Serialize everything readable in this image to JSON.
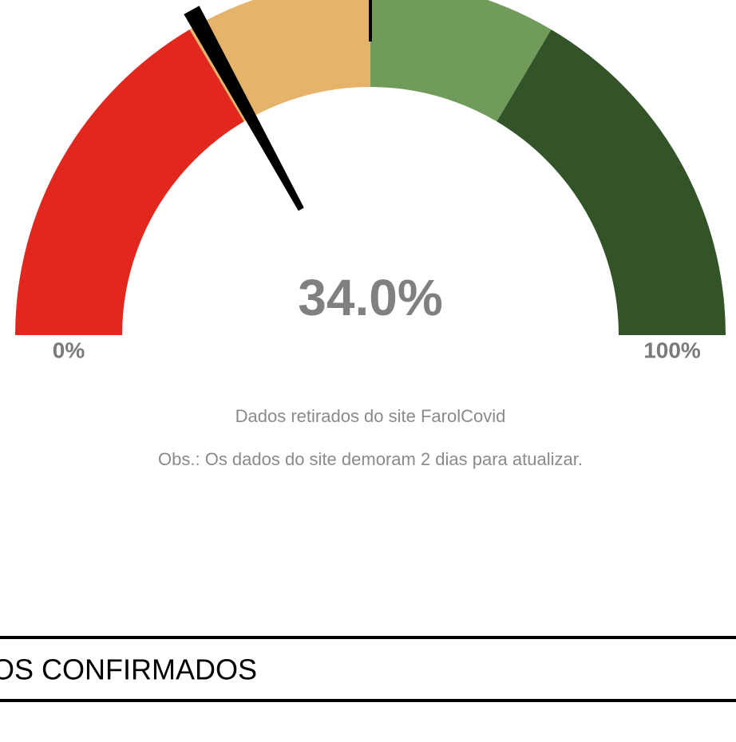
{
  "chart_data": {
    "type": "gauge",
    "value": 34.0,
    "value_labels": [
      "34.0%"
    ],
    "range": [
      0,
      100
    ],
    "ticks": [
      {
        "value": 0,
        "label": "0%"
      },
      {
        "value": 100,
        "label": "100%"
      }
    ],
    "marker": 50,
    "needle_color": "#000000",
    "bands": [
      {
        "from": 0,
        "to": 33,
        "color": "#e2271e"
      },
      {
        "from": 33,
        "to": 50,
        "color": "#e5b46a"
      },
      {
        "from": 50,
        "to": 67,
        "color": "#719b5a"
      },
      {
        "from": 67,
        "to": 100,
        "color": "#325428"
      }
    ]
  },
  "notes": [
    "Dados retirados do site FarolCovid",
    "Obs.: Os dados do site demoram 2 dias para atualizar."
  ],
  "section": {
    "title": "OS CONFIRMADOS"
  }
}
